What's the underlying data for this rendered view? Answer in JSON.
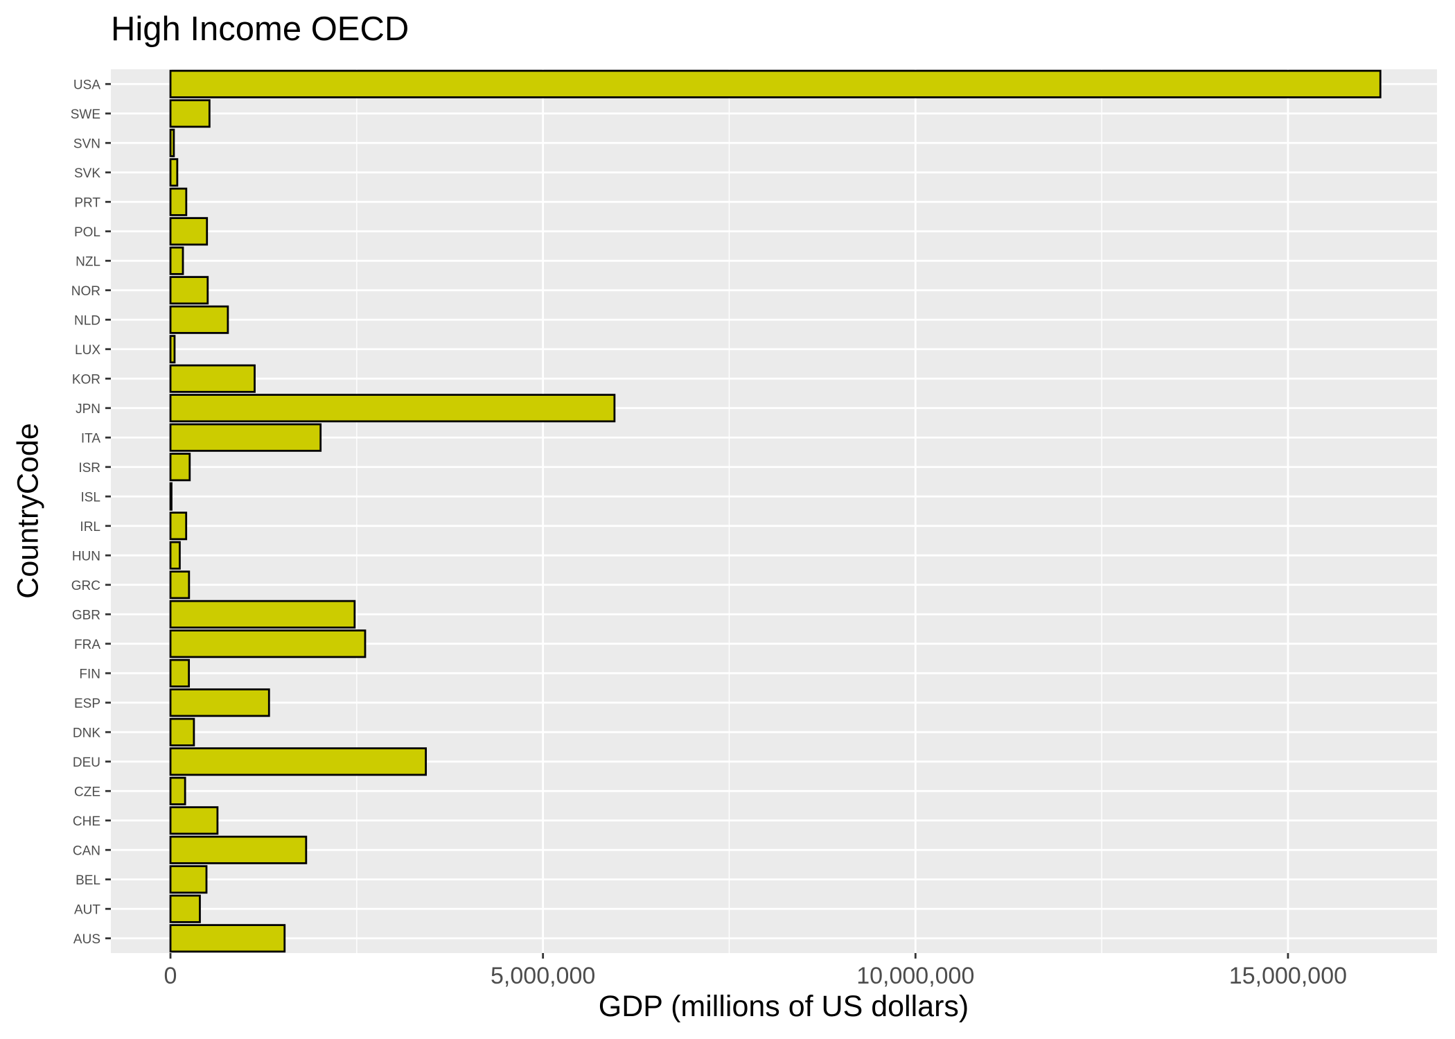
{
  "chart_data": {
    "type": "bar",
    "orientation": "horizontal",
    "title": "High Income OECD",
    "xlabel": "GDP (millions of US dollars)",
    "ylabel": "CountryCode",
    "xlim": [
      -800000,
      17000000
    ],
    "x_ticks": [
      0,
      5000000,
      10000000,
      15000000
    ],
    "x_tick_labels": [
      "0",
      "5,000,000",
      "10,000,000",
      "15,000,000"
    ],
    "categories": [
      "AUS",
      "AUT",
      "BEL",
      "CAN",
      "CHE",
      "CZE",
      "DEU",
      "DNK",
      "ESP",
      "FIN",
      "FRA",
      "GBR",
      "GRC",
      "HUN",
      "IRL",
      "ISL",
      "ISR",
      "ITA",
      "JPN",
      "KOR",
      "LUX",
      "NLD",
      "NOR",
      "NZL",
      "POL",
      "PRT",
      "SVK",
      "SVN",
      "SWE",
      "USA"
    ],
    "values": [
      1532000,
      394700,
      483300,
      1821000,
      631200,
      196400,
      3428000,
      314900,
      1323000,
      247500,
      2613000,
      2472000,
      249100,
      124600,
      210800,
      13600,
      258200,
      2015000,
      5960000,
      1130000,
      55100,
      770600,
      499700,
      167300,
      490000,
      212000,
      91300,
      45300,
      523800,
      16240000
    ],
    "grid": true,
    "legend": "none",
    "colors": {
      "bar_fill": "#cccc00",
      "bar_stroke": "#000000",
      "panel_bg": "#ebebeb",
      "grid": "#ffffff"
    }
  }
}
